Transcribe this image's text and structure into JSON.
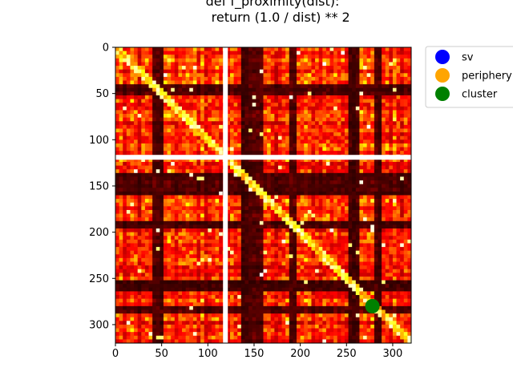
{
  "chart_data": {
    "type": "heatmap",
    "title_lines": [
      "def f_proximity(dist):",
      "    return (1.0 / dist) ** 2"
    ],
    "xlabel": "",
    "ylabel": "",
    "xlim": [
      0,
      320
    ],
    "ylim": [
      320,
      0
    ],
    "x_ticks": [
      0,
      50,
      100,
      150,
      200,
      250,
      300
    ],
    "y_ticks": [
      0,
      50,
      100,
      150,
      200,
      250,
      300
    ],
    "colormap": "hot",
    "grid": false,
    "separator_lines": {
      "color": "#ffffff",
      "x": [
        119
      ],
      "y": [
        119
      ]
    },
    "points": [
      {
        "label": "cluster",
        "x": 278,
        "y": 280,
        "color": "#008000"
      }
    ],
    "legend": {
      "placement": "outside-top-right",
      "entries": [
        {
          "label": "sv",
          "color": "#0000ff"
        },
        {
          "label": "periphery",
          "color": "#ffa500"
        },
        {
          "label": "cluster",
          "color": "#008000"
        }
      ]
    }
  }
}
